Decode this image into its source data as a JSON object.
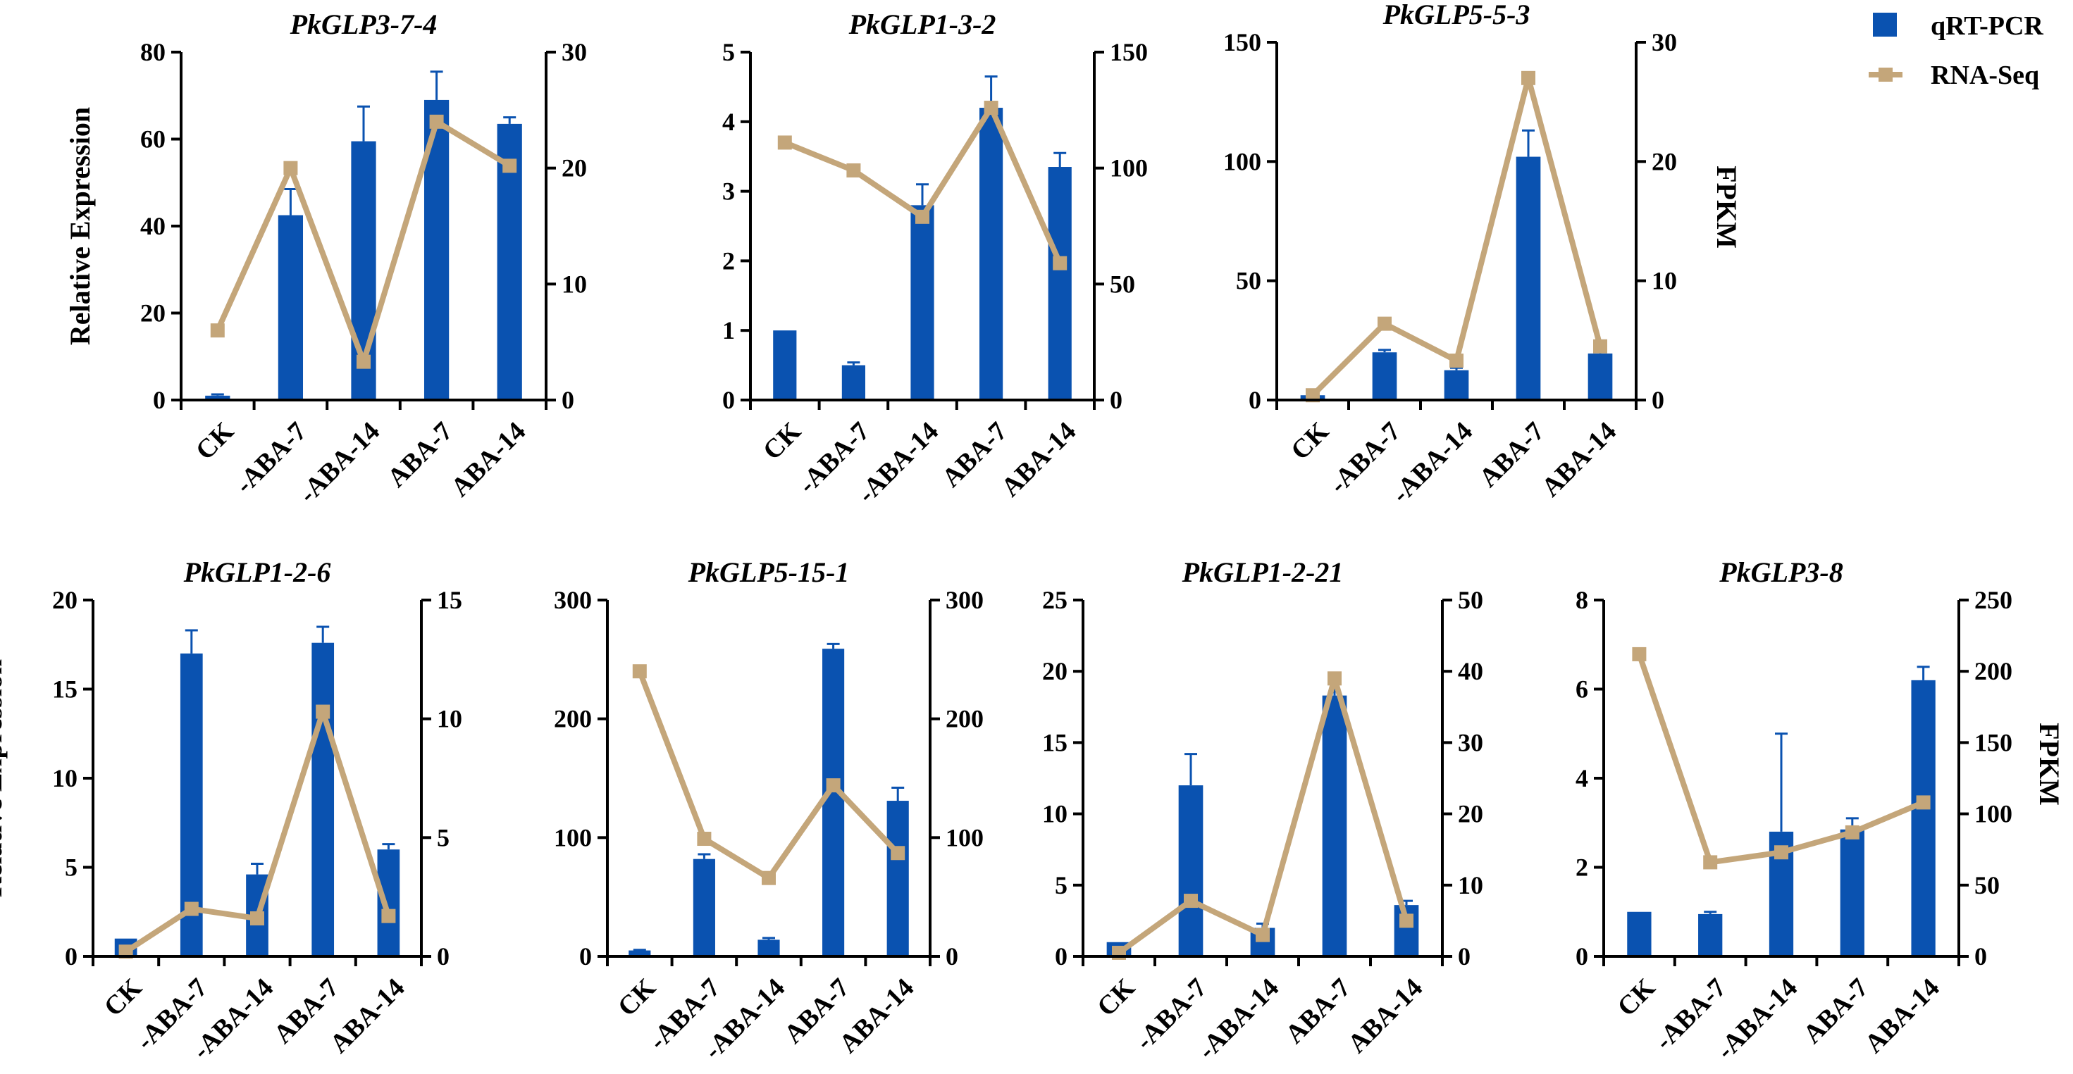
{
  "figure": {
    "y_label_left": "Relative Expression",
    "y_label_right": "FPKM",
    "colors": {
      "bar": "#0a52b0",
      "line": "#c4a67a",
      "axis": "#000000"
    }
  },
  "legend": {
    "bar_label": "qRT-PCR",
    "line_label": "RNA-Seq"
  },
  "chart_data": [
    {
      "type": "bar+line",
      "title": "PkGLP3-7-4",
      "categories": [
        "CK",
        "-ABA-7",
        "-ABA-14",
        "ABA-7",
        "ABA-14"
      ],
      "series": [
        {
          "name": "qRT-PCR",
          "axis": "left",
          "values": [
            1,
            42.5,
            59.5,
            69,
            63.5
          ],
          "errors": [
            0.3,
            6,
            8,
            6.5,
            1.5
          ]
        },
        {
          "name": "RNA-Seq",
          "axis": "right",
          "values": [
            6,
            20,
            3.3,
            24,
            20.2
          ]
        }
      ],
      "ylim_left": [
        0,
        80
      ],
      "yticks_left": [
        0,
        20,
        40,
        60,
        80
      ],
      "ylim_right": [
        0,
        30
      ],
      "yticks_right": [
        0,
        10,
        20,
        30
      ],
      "show_left_label": true,
      "show_right_label": false
    },
    {
      "type": "bar+line",
      "title": "PkGLP1-3-2",
      "categories": [
        "CK",
        "-ABA-7",
        "-ABA-14",
        "ABA-7",
        "ABA-14"
      ],
      "series": [
        {
          "name": "qRT-PCR",
          "axis": "left",
          "values": [
            1,
            0.5,
            2.8,
            4.2,
            3.35
          ],
          "errors": [
            0,
            0.04,
            0.3,
            0.45,
            0.2
          ]
        },
        {
          "name": "RNA-Seq",
          "axis": "right",
          "values": [
            111,
            99,
            79,
            126,
            59
          ]
        }
      ],
      "ylim_left": [
        0,
        5
      ],
      "yticks_left": [
        0,
        1,
        2,
        3,
        4,
        5
      ],
      "ylim_right": [
        0,
        150
      ],
      "yticks_right": [
        0,
        50,
        100,
        150
      ],
      "show_left_label": false,
      "show_right_label": false
    },
    {
      "type": "bar+line",
      "title": "PkGLP5-5-3",
      "categories": [
        "CK",
        "-ABA-7",
        "-ABA-14",
        "ABA-7",
        "ABA-14"
      ],
      "series": [
        {
          "name": "qRT-PCR",
          "axis": "left",
          "values": [
            2,
            20,
            12.5,
            102,
            19.5
          ],
          "errors": [
            0.5,
            1,
            1,
            11,
            4
          ]
        },
        {
          "name": "RNA-Seq",
          "axis": "right",
          "values": [
            0.4,
            6.4,
            3.3,
            27,
            4.5
          ]
        }
      ],
      "ylim_left": [
        0,
        150
      ],
      "yticks_left": [
        0,
        50,
        100,
        150
      ],
      "ylim_right": [
        0,
        30
      ],
      "yticks_right": [
        0,
        10,
        20,
        30
      ],
      "show_left_label": false,
      "show_right_label": true
    },
    {
      "type": "bar+line",
      "title": "PkGLP1-2-6",
      "categories": [
        "CK",
        "-ABA-7",
        "-ABA-14",
        "ABA-7",
        "ABA-14"
      ],
      "series": [
        {
          "name": "qRT-PCR",
          "axis": "left",
          "values": [
            1,
            17,
            4.6,
            17.6,
            6
          ],
          "errors": [
            0,
            1.3,
            0.6,
            0.9,
            0.3
          ]
        },
        {
          "name": "RNA-Seq",
          "axis": "right",
          "values": [
            0.2,
            2,
            1.6,
            10.3,
            1.7
          ]
        }
      ],
      "ylim_left": [
        0,
        20
      ],
      "yticks_left": [
        0,
        5,
        10,
        15,
        20
      ],
      "ylim_right": [
        0,
        15
      ],
      "yticks_right": [
        0,
        5,
        10,
        15
      ],
      "show_left_label": true,
      "show_right_label": false
    },
    {
      "type": "bar+line",
      "title": "PkGLP5-15-1",
      "categories": [
        "CK",
        "-ABA-7",
        "-ABA-14",
        "ABA-7",
        "ABA-14"
      ],
      "series": [
        {
          "name": "qRT-PCR",
          "axis": "left",
          "values": [
            5,
            82,
            14,
            259,
            131
          ],
          "errors": [
            0.5,
            4,
            1.5,
            4,
            11
          ]
        },
        {
          "name": "RNA-Seq",
          "axis": "right",
          "values": [
            240,
            99,
            66,
            144,
            87
          ]
        }
      ],
      "ylim_left": [
        0,
        300
      ],
      "yticks_left": [
        0,
        100,
        200,
        300
      ],
      "ylim_right": [
        0,
        300
      ],
      "yticks_right": [
        0,
        100,
        200,
        300
      ],
      "show_left_label": false,
      "show_right_label": false
    },
    {
      "type": "bar+line",
      "title": "PkGLP1-2-21",
      "categories": [
        "CK",
        "-ABA-7",
        "-ABA-14",
        "ABA-7",
        "ABA-14"
      ],
      "series": [
        {
          "name": "qRT-PCR",
          "axis": "left",
          "values": [
            1,
            12,
            2,
            18.3,
            3.6
          ],
          "errors": [
            0,
            2.2,
            0.3,
            1.5,
            0.3
          ]
        },
        {
          "name": "RNA-Seq",
          "axis": "right",
          "values": [
            0.5,
            7.8,
            3,
            39,
            5
          ]
        }
      ],
      "ylim_left": [
        0,
        25
      ],
      "yticks_left": [
        0,
        5,
        10,
        15,
        20,
        25
      ],
      "ylim_right": [
        0,
        50
      ],
      "yticks_right": [
        0,
        10,
        20,
        30,
        40,
        50
      ],
      "show_left_label": false,
      "show_right_label": false
    },
    {
      "type": "bar+line",
      "title": "PkGLP3-8",
      "categories": [
        "CK",
        "-ABA-7",
        "-ABA-14",
        "ABA-7",
        "ABA-14"
      ],
      "series": [
        {
          "name": "qRT-PCR",
          "axis": "left",
          "values": [
            1,
            0.95,
            2.8,
            2.85,
            6.2
          ],
          "errors": [
            0,
            0.05,
            2.2,
            0.25,
            0.3
          ]
        },
        {
          "name": "RNA-Seq",
          "axis": "right",
          "values": [
            212,
            66,
            73,
            87,
            108
          ]
        }
      ],
      "ylim_left": [
        0,
        8
      ],
      "yticks_left": [
        0,
        2,
        4,
        6,
        8
      ],
      "ylim_right": [
        0,
        250
      ],
      "yticks_right": [
        0,
        50,
        100,
        150,
        200,
        250
      ],
      "show_left_label": false,
      "show_right_label": true
    }
  ]
}
